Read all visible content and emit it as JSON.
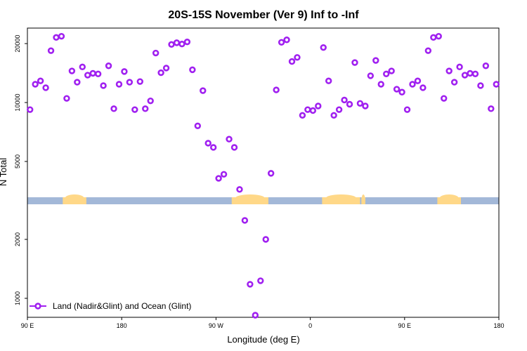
{
  "chart_data": {
    "type": "scatter",
    "title": "20S-15S November (Ver 9)   Inf to -Inf",
    "xlabel": "Longitude (deg E)",
    "ylabel": "N Total",
    "y_scale": "log",
    "xlim": [
      0,
      360
    ],
    "ylim": [
      800,
      24000
    ],
    "x_ticks": [
      {
        "value": 0,
        "label": "90 E"
      },
      {
        "value": 72,
        "label": "180"
      },
      {
        "value": 144,
        "label": "90 W"
      },
      {
        "value": 216,
        "label": "0"
      },
      {
        "value": 288,
        "label": "90 E"
      },
      {
        "value": 360,
        "label": "180"
      }
    ],
    "y_ticks": [
      {
        "value": 1000,
        "label": "1000"
      },
      {
        "value": 2000,
        "label": "2000"
      },
      {
        "value": 5000,
        "label": "5000"
      },
      {
        "value": 10000,
        "label": "10000"
      },
      {
        "value": 20000,
        "label": "20000"
      }
    ],
    "series": [
      {
        "name": "Land (Nadir&Glint) and Ocean (Glint)",
        "color": "#a020f0",
        "points": [
          [
            2,
            9200
          ],
          [
            6,
            12400
          ],
          [
            10,
            12900
          ],
          [
            14,
            11900
          ],
          [
            18,
            18400
          ],
          [
            22,
            21500
          ],
          [
            26,
            21800
          ],
          [
            30,
            10500
          ],
          [
            34,
            14500
          ],
          [
            38,
            12700
          ],
          [
            42,
            15200
          ],
          [
            46,
            13800
          ],
          [
            50,
            14100
          ],
          [
            54,
            14000
          ],
          [
            58,
            12200
          ],
          [
            62,
            15400
          ],
          [
            66,
            9300
          ],
          [
            70,
            12400
          ],
          [
            74,
            14400
          ],
          [
            78,
            12700
          ],
          [
            82,
            9200
          ],
          [
            86,
            12800
          ],
          [
            90,
            9300
          ],
          [
            94,
            10200
          ],
          [
            98,
            17900
          ],
          [
            102,
            14200
          ],
          [
            106,
            15000
          ],
          [
            110,
            19800
          ],
          [
            114,
            20200
          ],
          [
            118,
            19900
          ],
          [
            122,
            20400
          ],
          [
            126,
            14700
          ],
          [
            134,
            11500
          ],
          [
            130,
            7600
          ],
          [
            138,
            6200
          ],
          [
            142,
            5900
          ],
          [
            146,
            4100
          ],
          [
            150,
            4300
          ],
          [
            154,
            6500
          ],
          [
            158,
            5900
          ],
          [
            162,
            3600
          ],
          [
            166,
            2500
          ],
          [
            170,
            1180
          ],
          [
            174,
            820
          ],
          [
            178,
            1230
          ],
          [
            182,
            2000
          ],
          [
            186,
            4350
          ],
          [
            190,
            11600
          ],
          [
            194,
            20300
          ],
          [
            198,
            20900
          ],
          [
            202,
            16200
          ],
          [
            206,
            17000
          ],
          [
            210,
            8600
          ],
          [
            214,
            9200
          ],
          [
            218,
            9100
          ],
          [
            222,
            9600
          ],
          [
            226,
            19100
          ],
          [
            230,
            12900
          ],
          [
            234,
            8600
          ],
          [
            238,
            9200
          ],
          [
            242,
            10300
          ],
          [
            246,
            9800
          ],
          [
            250,
            16000
          ],
          [
            254,
            9900
          ],
          [
            258,
            9600
          ],
          [
            262,
            13700
          ],
          [
            266,
            16400
          ],
          [
            270,
            12400
          ],
          [
            274,
            14000
          ],
          [
            278,
            14500
          ],
          [
            282,
            11700
          ],
          [
            286,
            11300
          ],
          [
            290,
            9200
          ],
          [
            294,
            12400
          ],
          [
            298,
            12900
          ],
          [
            302,
            11900
          ],
          [
            306,
            18400
          ],
          [
            310,
            21500
          ],
          [
            314,
            21800
          ],
          [
            318,
            10500
          ],
          [
            322,
            14500
          ],
          [
            326,
            12700
          ],
          [
            330,
            15200
          ],
          [
            334,
            13800
          ],
          [
            338,
            14100
          ],
          [
            342,
            14000
          ],
          [
            346,
            12200
          ],
          [
            350,
            15400
          ],
          [
            354,
            9300
          ],
          [
            358,
            12400
          ]
        ]
      }
    ],
    "surface_band": {
      "ocean_color": "#a3b8d8",
      "land_color": "#ffd888",
      "land_ranges": [
        [
          27,
          45
        ],
        [
          156,
          184
        ],
        [
          225,
          254
        ],
        [
          255,
          258
        ],
        [
          313,
          331
        ]
      ]
    },
    "legend": {
      "position": "bottom-left"
    }
  }
}
